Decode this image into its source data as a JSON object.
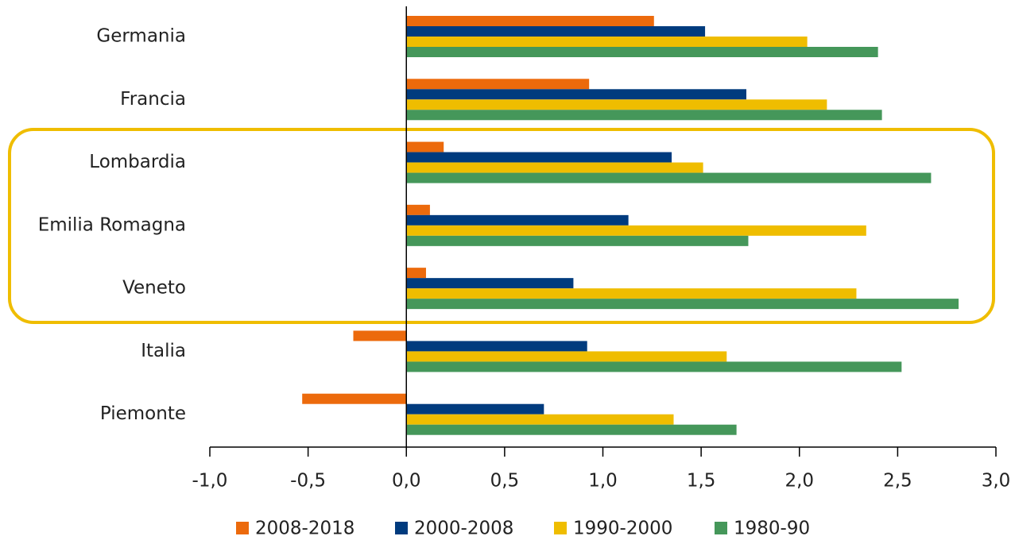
{
  "chart_data": {
    "type": "hbar",
    "categories": [
      "Germania",
      "Francia",
      "Lombardia",
      "Emilia Romagna",
      "Veneto",
      "Italia",
      "Piemonte"
    ],
    "series": [
      {
        "name": "2008-2018",
        "color": "#ec6a0c",
        "values": [
          1.26,
          0.93,
          0.19,
          0.12,
          0.1,
          -0.27,
          -0.53
        ]
      },
      {
        "name": "2000-2008",
        "color": "#003b7e",
        "values": [
          1.52,
          1.73,
          1.35,
          1.13,
          0.85,
          0.92,
          0.7
        ]
      },
      {
        "name": "1990-2000",
        "color": "#efbd00",
        "values": [
          2.04,
          2.14,
          1.51,
          2.34,
          2.29,
          1.63,
          1.36
        ]
      },
      {
        "name": "1980-90",
        "color": "#45975a",
        "values": [
          2.4,
          2.42,
          2.67,
          1.74,
          2.81,
          2.52,
          1.68
        ]
      }
    ],
    "xlim": [
      -1.0,
      3.0
    ],
    "xticks": [
      {
        "value": -1.0,
        "label": "-1,0"
      },
      {
        "value": -0.5,
        "label": "-0,5"
      },
      {
        "value": 0,
        "label": "0,0"
      },
      {
        "value": 0.5,
        "label": "0,5"
      },
      {
        "value": 1.0,
        "label": "1,0"
      },
      {
        "value": 1.5,
        "label": "1,5"
      },
      {
        "value": 2.0,
        "label": "2,0"
      },
      {
        "value": 2.5,
        "label": "2,5"
      },
      {
        "value": 3.0,
        "label": "3,0"
      }
    ],
    "legend": "bottom"
  }
}
